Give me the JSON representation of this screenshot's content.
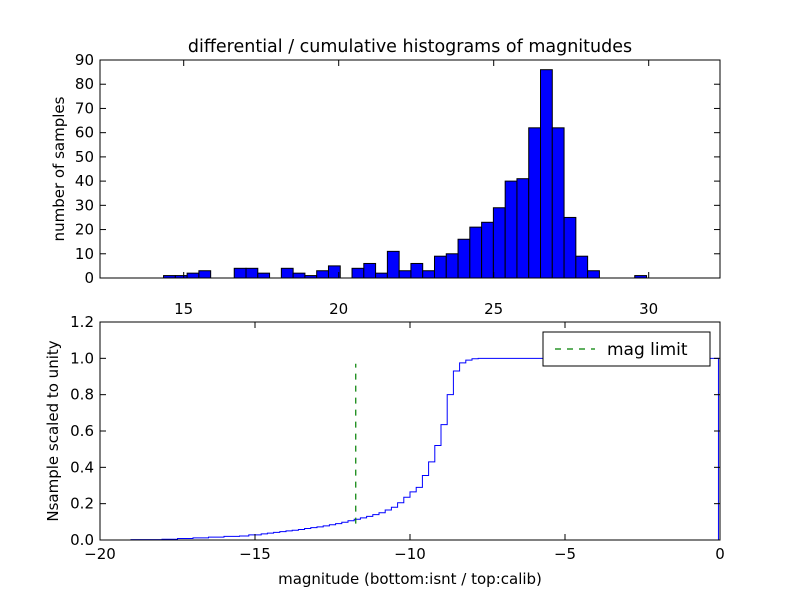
{
  "title": "differential / cumulative histograms of magnitudes",
  "chart_data": [
    {
      "type": "bar",
      "histogram": true,
      "ylabel": "number of samples",
      "xlim": [
        12.3,
        32.3
      ],
      "ylim": [
        0,
        90
      ],
      "xticks": [
        15,
        20,
        25,
        30
      ],
      "yticks": [
        0,
        10,
        20,
        30,
        40,
        50,
        60,
        70,
        80,
        90
      ],
      "bar_color": "#0000ff",
      "bins": [
        {
          "x": 14.35,
          "width": 0.38,
          "value": 1
        },
        {
          "x": 14.73,
          "width": 0.38,
          "value": 1
        },
        {
          "x": 15.11,
          "width": 0.38,
          "value": 2
        },
        {
          "x": 15.49,
          "width": 0.38,
          "value": 3
        },
        {
          "x": 16.63,
          "width": 0.38,
          "value": 4
        },
        {
          "x": 17.01,
          "width": 0.38,
          "value": 4
        },
        {
          "x": 17.39,
          "width": 0.38,
          "value": 2
        },
        {
          "x": 18.15,
          "width": 0.38,
          "value": 4
        },
        {
          "x": 18.53,
          "width": 0.38,
          "value": 2
        },
        {
          "x": 18.91,
          "width": 0.38,
          "value": 1
        },
        {
          "x": 19.29,
          "width": 0.38,
          "value": 3
        },
        {
          "x": 19.67,
          "width": 0.38,
          "value": 5
        },
        {
          "x": 20.43,
          "width": 0.38,
          "value": 4
        },
        {
          "x": 20.81,
          "width": 0.38,
          "value": 6
        },
        {
          "x": 21.19,
          "width": 0.38,
          "value": 2
        },
        {
          "x": 21.57,
          "width": 0.38,
          "value": 11
        },
        {
          "x": 21.95,
          "width": 0.38,
          "value": 3
        },
        {
          "x": 22.33,
          "width": 0.38,
          "value": 6
        },
        {
          "x": 22.71,
          "width": 0.38,
          "value": 3
        },
        {
          "x": 23.09,
          "width": 0.38,
          "value": 9
        },
        {
          "x": 23.47,
          "width": 0.38,
          "value": 10
        },
        {
          "x": 23.85,
          "width": 0.38,
          "value": 16
        },
        {
          "x": 24.23,
          "width": 0.38,
          "value": 21
        },
        {
          "x": 24.61,
          "width": 0.38,
          "value": 23
        },
        {
          "x": 24.99,
          "width": 0.38,
          "value": 29
        },
        {
          "x": 25.37,
          "width": 0.38,
          "value": 40
        },
        {
          "x": 25.75,
          "width": 0.38,
          "value": 41
        },
        {
          "x": 26.13,
          "width": 0.38,
          "value": 62
        },
        {
          "x": 26.51,
          "width": 0.38,
          "value": 86
        },
        {
          "x": 26.89,
          "width": 0.38,
          "value": 62
        },
        {
          "x": 27.27,
          "width": 0.38,
          "value": 25
        },
        {
          "x": 27.65,
          "width": 0.38,
          "value": 9
        },
        {
          "x": 28.03,
          "width": 0.38,
          "value": 3
        },
        {
          "x": 29.55,
          "width": 0.38,
          "value": 1
        }
      ]
    },
    {
      "type": "line",
      "step": true,
      "xlabel": "magnitude (bottom:isnt / top:calib)",
      "ylabel": "Nsample scaled to unity",
      "xlim": [
        -20,
        0
      ],
      "ylim": [
        0,
        1.2
      ],
      "xticks": [
        -20,
        -15,
        -10,
        -5,
        0
      ],
      "xtick_labels": [
        "−20",
        "−15",
        "−10",
        "−5",
        "0"
      ],
      "yticks": [
        0,
        0.2,
        0.4,
        0.6,
        0.8,
        1.0,
        1.2
      ],
      "ytick_labels": [
        "0.0",
        "0.2",
        "0.4",
        "0.6",
        "0.8",
        "1.0",
        "1.2"
      ],
      "legend_position": "top-right",
      "series": [
        {
          "color": "#0000ff",
          "x": [
            -20,
            -19.0,
            -18.0,
            -17.5,
            -17.0,
            -16.5,
            -16.0,
            -15.5,
            -15.2,
            -14.8,
            -14.6,
            -14.4,
            -14.2,
            -14.0,
            -13.8,
            -13.6,
            -13.4,
            -13.2,
            -13.0,
            -12.8,
            -12.6,
            -12.4,
            -12.2,
            -12.0,
            -11.8,
            -11.6,
            -11.4,
            -11.2,
            -11.0,
            -10.8,
            -10.6,
            -10.4,
            -10.2,
            -10.0,
            -9.8,
            -9.6,
            -9.4,
            -9.2,
            -9.0,
            -8.8,
            -8.6,
            -8.4,
            -8.2,
            -8.0,
            -7.8,
            -7.6,
            -7.4,
            -7.0,
            -6.0,
            -5.0,
            -4.0,
            -3.0,
            -2.0,
            -1.0,
            -0.05,
            -0.05
          ],
          "y": [
            0.0,
            0.002,
            0.004,
            0.008,
            0.012,
            0.016,
            0.02,
            0.022,
            0.028,
            0.034,
            0.038,
            0.042,
            0.046,
            0.05,
            0.054,
            0.058,
            0.063,
            0.068,
            0.072,
            0.078,
            0.084,
            0.09,
            0.098,
            0.106,
            0.114,
            0.122,
            0.13,
            0.14,
            0.15,
            0.165,
            0.18,
            0.205,
            0.235,
            0.265,
            0.29,
            0.355,
            0.43,
            0.52,
            0.635,
            0.8,
            0.93,
            0.975,
            0.99,
            0.998,
            1.0,
            1.0,
            1.0,
            1.0,
            1.0,
            1.0,
            1.0,
            1.0,
            1.0,
            1.0,
            1.0,
            0.0
          ]
        },
        {
          "name": "mag limit",
          "color": "#008000",
          "dashed": true,
          "x": [
            -11.75,
            -11.75
          ],
          "y": [
            0.09,
            0.97
          ]
        }
      ]
    }
  ]
}
